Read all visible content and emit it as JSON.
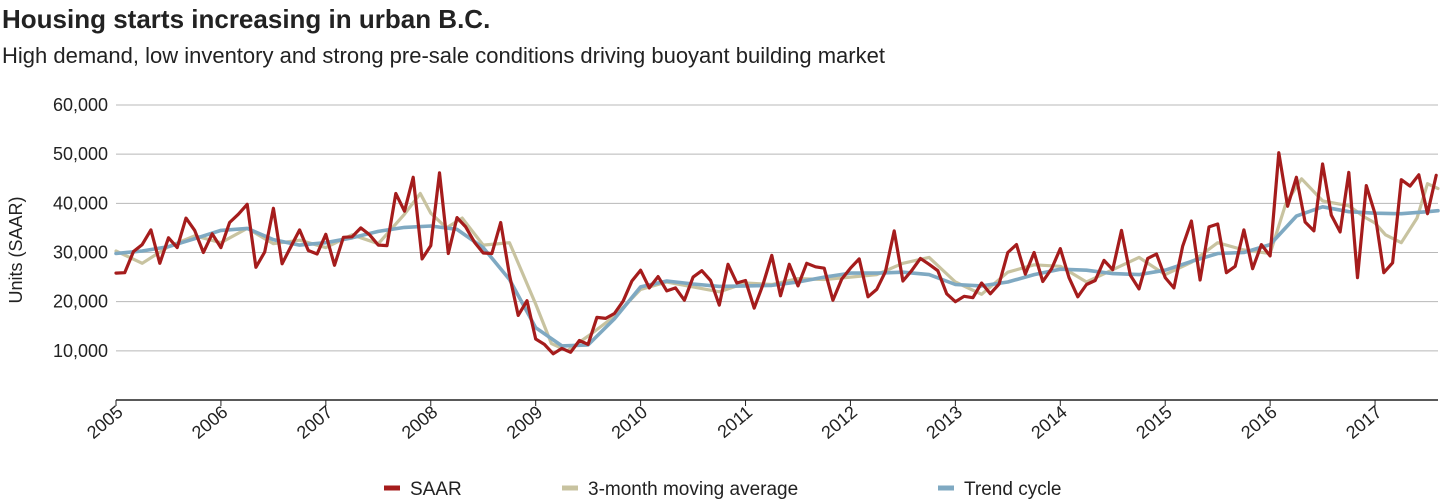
{
  "chart_data": {
    "type": "line",
    "title": "Housing starts increasing in urban B.C.",
    "subtitle": "High demand, low inventory and strong pre-sale conditions driving buoyant building market",
    "ylabel": "Units (SAAR)",
    "xlabel": "",
    "ylim": [
      0,
      60000
    ],
    "yticks": [
      10000,
      20000,
      30000,
      40000,
      50000,
      60000
    ],
    "ytick_labels": [
      "10,000",
      "20,000",
      "30,000",
      "40,000",
      "50,000",
      "60,000"
    ],
    "xlim": [
      2005,
      2017.6
    ],
    "xticks": [
      2005,
      2006,
      2007,
      2008,
      2009,
      2010,
      2011,
      2012,
      2013,
      2014,
      2015,
      2016,
      2017
    ],
    "xtick_labels": [
      "2005",
      "2006",
      "2007",
      "2008",
      "2009",
      "2010",
      "2011",
      "2012",
      "2013",
      "2014",
      "2015",
      "2016",
      "2017"
    ],
    "grid": true,
    "legend_position": "bottom",
    "series": [
      {
        "name": "SAAR",
        "color": "#a51c1c",
        "x": [
          2005.0,
          2005.083,
          2005.167,
          2005.25,
          2005.333,
          2005.417,
          2005.5,
          2005.583,
          2005.667,
          2005.75,
          2005.833,
          2005.917,
          2006.0,
          2006.083,
          2006.167,
          2006.25,
          2006.333,
          2006.417,
          2006.5,
          2006.583,
          2006.667,
          2006.75,
          2006.833,
          2006.917,
          2007.0,
          2007.083,
          2007.167,
          2007.25,
          2007.333,
          2007.417,
          2007.5,
          2007.583,
          2007.667,
          2007.75,
          2007.833,
          2007.917,
          2008.0,
          2008.083,
          2008.167,
          2008.25,
          2008.333,
          2008.417,
          2008.5,
          2008.583,
          2008.667,
          2008.75,
          2008.833,
          2008.917,
          2009.0,
          2009.083,
          2009.167,
          2009.25,
          2009.333,
          2009.417,
          2009.5,
          2009.583,
          2009.667,
          2009.75,
          2009.833,
          2009.917,
          2010.0,
          2010.083,
          2010.167,
          2010.25,
          2010.333,
          2010.417,
          2010.5,
          2010.583,
          2010.667,
          2010.75,
          2010.833,
          2010.917,
          2011.0,
          2011.083,
          2011.167,
          2011.25,
          2011.333,
          2011.417,
          2011.5,
          2011.583,
          2011.667,
          2011.75,
          2011.833,
          2011.917,
          2012.0,
          2012.083,
          2012.167,
          2012.25,
          2012.333,
          2012.417,
          2012.5,
          2012.583,
          2012.667,
          2012.75,
          2012.833,
          2012.917,
          2013.0,
          2013.083,
          2013.167,
          2013.25,
          2013.333,
          2013.417,
          2013.5,
          2013.583,
          2013.667,
          2013.75,
          2013.833,
          2013.917,
          2014.0,
          2014.083,
          2014.167,
          2014.25,
          2014.333,
          2014.417,
          2014.5,
          2014.583,
          2014.667,
          2014.75,
          2014.833,
          2014.917,
          2015.0,
          2015.083,
          2015.167,
          2015.25,
          2015.333,
          2015.417,
          2015.5,
          2015.583,
          2015.667,
          2015.75,
          2015.833,
          2015.917,
          2016.0,
          2016.083,
          2016.167,
          2016.25,
          2016.333,
          2016.417,
          2016.5,
          2016.583,
          2016.667,
          2016.75,
          2016.833,
          2016.917,
          2017.0,
          2017.083,
          2017.167,
          2017.25,
          2017.333,
          2017.417,
          2017.5,
          2017.583
        ],
        "values": [
          25800,
          25900,
          30200,
          31600,
          34600,
          27800,
          33000,
          31000,
          37000,
          34500,
          30000,
          33800,
          31000,
          36100,
          37800,
          39800,
          27000,
          30100,
          39000,
          27700,
          31200,
          34600,
          30400,
          29700,
          33700,
          27400,
          33100,
          33200,
          35000,
          33600,
          31500,
          31400,
          42000,
          38400,
          45300,
          28700,
          31400,
          46200,
          29800,
          37100,
          35200,
          32100,
          29900,
          29800,
          36100,
          25400,
          17200,
          20200,
          12400,
          11300,
          9400,
          10500,
          9700,
          12100,
          11300,
          16800,
          16600,
          17600,
          20100,
          24200,
          26400,
          22800,
          25100,
          22200,
          22800,
          20300,
          25000,
          26300,
          24300,
          19300,
          27600,
          23800,
          24300,
          18700,
          23500,
          29400,
          21200,
          27600,
          23200,
          27800,
          27100,
          26800,
          20300,
          24600,
          26800,
          28700,
          21000,
          22500,
          26100,
          34400,
          24200,
          26300,
          28800,
          27600,
          26300,
          21600,
          20000,
          21100,
          20800,
          23800,
          21600,
          23600,
          30000,
          31600,
          25600,
          30000,
          24100,
          26700,
          30800,
          24900,
          21000,
          23500,
          24300,
          28400,
          26500,
          34500,
          25400,
          22600,
          28800,
          29700,
          24900,
          22800,
          31300,
          36400,
          24400,
          35200,
          35800,
          25900,
          27200,
          34600,
          26700,
          31600,
          29300,
          50300,
          39400,
          45300,
          36200,
          34400,
          48000,
          37600,
          34200,
          46300,
          24900,
          43600,
          37900,
          25900,
          27900,
          44800,
          43500,
          45800,
          37900,
          45700
        ]
      },
      {
        "name": "3-month moving average",
        "color": "#c8c3a0",
        "x": [
          2005.0,
          2005.25,
          2005.5,
          2005.75,
          2006.0,
          2006.25,
          2006.5,
          2006.75,
          2007.0,
          2007.25,
          2007.5,
          2007.75,
          2007.9,
          2008.0,
          2008.15,
          2008.3,
          2008.5,
          2008.75,
          2009.0,
          2009.15,
          2009.3,
          2009.5,
          2009.75,
          2010.0,
          2010.25,
          2010.5,
          2010.75,
          2011.0,
          2011.25,
          2011.5,
          2011.75,
          2012.0,
          2012.25,
          2012.5,
          2012.75,
          2013.0,
          2013.25,
          2013.5,
          2013.75,
          2014.0,
          2014.25,
          2014.5,
          2014.75,
          2015.0,
          2015.25,
          2015.5,
          2015.75,
          2016.0,
          2016.15,
          2016.3,
          2016.5,
          2016.75,
          2016.9,
          2017.0,
          2017.1,
          2017.25,
          2017.4,
          2017.5,
          2017.6
        ],
        "values": [
          30300,
          27800,
          31200,
          33400,
          32000,
          34900,
          31800,
          32500,
          31000,
          33600,
          31800,
          37800,
          42000,
          38000,
          35000,
          37000,
          31500,
          32000,
          19500,
          11500,
          10000,
          13000,
          17000,
          22500,
          24000,
          23000,
          22000,
          23800,
          23500,
          24700,
          24500,
          25000,
          25500,
          27800,
          29000,
          24000,
          21500,
          26000,
          27500,
          27200,
          24000,
          26500,
          29000,
          25500,
          28000,
          32000,
          30500,
          29800,
          40000,
          45000,
          40500,
          39500,
          37200,
          36000,
          33600,
          32000,
          37000,
          44000,
          43000
        ]
      },
      {
        "name": "Trend cycle",
        "color": "#7fa9c2",
        "x": [
          2005.0,
          2005.25,
          2005.5,
          2005.75,
          2006.0,
          2006.25,
          2006.5,
          2006.75,
          2007.0,
          2007.25,
          2007.5,
          2007.75,
          2008.0,
          2008.25,
          2008.5,
          2008.75,
          2009.0,
          2009.25,
          2009.5,
          2009.75,
          2010.0,
          2010.25,
          2010.5,
          2010.75,
          2011.0,
          2011.25,
          2011.5,
          2011.75,
          2012.0,
          2012.25,
          2012.5,
          2012.75,
          2013.0,
          2013.25,
          2013.5,
          2013.75,
          2014.0,
          2014.25,
          2014.5,
          2014.75,
          2015.0,
          2015.25,
          2015.5,
          2015.75,
          2016.0,
          2016.25,
          2016.5,
          2016.75,
          2017.0,
          2017.25,
          2017.5,
          2017.6
        ],
        "values": [
          29800,
          30300,
          31200,
          32800,
          34500,
          34900,
          32600,
          31500,
          32000,
          33000,
          34300,
          35100,
          35400,
          34700,
          31000,
          24500,
          14700,
          11000,
          11200,
          16500,
          23000,
          24200,
          23600,
          23100,
          23200,
          23300,
          24000,
          25000,
          25800,
          25800,
          26000,
          25500,
          23500,
          23200,
          24000,
          25500,
          26600,
          26400,
          25700,
          25500,
          26400,
          28200,
          29800,
          30000,
          31600,
          37400,
          39300,
          38300,
          38000,
          37900,
          38300,
          38500
        ]
      }
    ]
  }
}
